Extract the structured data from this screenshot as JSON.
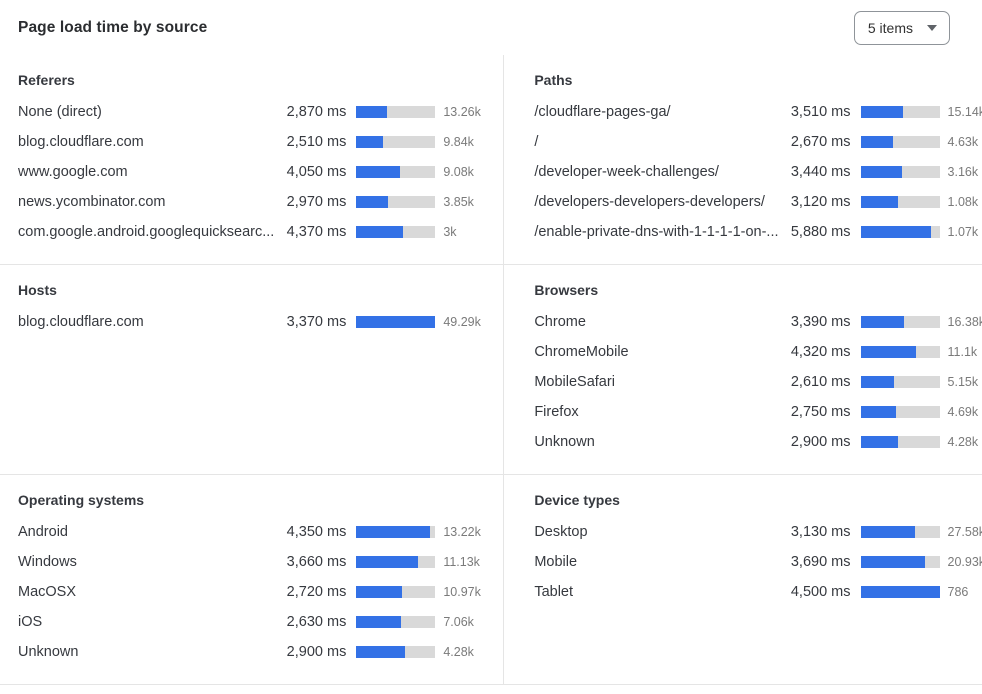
{
  "header": {
    "title": "Page load time by source",
    "items_select": {
      "value": "5 items"
    }
  },
  "colors": {
    "bar_fill": "#3371E6",
    "bar_track": "#D9D9D9",
    "divider": "#E5E5E5",
    "label_text": "#36393F",
    "count_text": "#7A7A7A"
  },
  "chart_data": [
    {
      "type": "bar",
      "title": "Referers",
      "unit": "ms",
      "bar_max_ms": 7400,
      "rows": [
        {
          "label": "None (direct)",
          "ms": 2870,
          "ms_label": "2,870 ms",
          "count_label": "13.26k"
        },
        {
          "label": "blog.cloudflare.com",
          "ms": 2510,
          "ms_label": "2,510 ms",
          "count_label": "9.84k"
        },
        {
          "label": "www.google.com",
          "ms": 4050,
          "ms_label": "4,050 ms",
          "count_label": "9.08k"
        },
        {
          "label": "news.ycombinator.com",
          "ms": 2970,
          "ms_label": "2,970 ms",
          "count_label": "3.85k"
        },
        {
          "label": "com.google.android.googlequicksearc...",
          "ms": 4370,
          "ms_label": "4,370 ms",
          "count_label": "3k"
        }
      ]
    },
    {
      "type": "bar",
      "title": "Paths",
      "unit": "ms",
      "bar_max_ms": 6600,
      "rows": [
        {
          "label": "/cloudflare-pages-ga/",
          "ms": 3510,
          "ms_label": "3,510 ms",
          "count_label": "15.14k"
        },
        {
          "label": "/",
          "ms": 2670,
          "ms_label": "2,670 ms",
          "count_label": "4.63k"
        },
        {
          "label": "/developer-week-challenges/",
          "ms": 3440,
          "ms_label": "3,440 ms",
          "count_label": "3.16k"
        },
        {
          "label": "/developers-developers-developers/",
          "ms": 3120,
          "ms_label": "3,120 ms",
          "count_label": "1.08k"
        },
        {
          "label": "/enable-private-dns-with-1-1-1-1-on-...",
          "ms": 5880,
          "ms_label": "5,880 ms",
          "count_label": "1.07k"
        }
      ]
    },
    {
      "type": "bar",
      "title": "Hosts",
      "unit": "ms",
      "bar_max_ms": 3370,
      "rows": [
        {
          "label": "blog.cloudflare.com",
          "ms": 3370,
          "ms_label": "3,370 ms",
          "count_label": "49.29k"
        }
      ]
    },
    {
      "type": "bar",
      "title": "Browsers",
      "unit": "ms",
      "bar_max_ms": 6150,
      "rows": [
        {
          "label": "Chrome",
          "ms": 3390,
          "ms_label": "3,390 ms",
          "count_label": "16.38k"
        },
        {
          "label": "ChromeMobile",
          "ms": 4320,
          "ms_label": "4,320 ms",
          "count_label": "11.1k"
        },
        {
          "label": "MobileSafari",
          "ms": 2610,
          "ms_label": "2,610 ms",
          "count_label": "5.15k"
        },
        {
          "label": "Firefox",
          "ms": 2750,
          "ms_label": "2,750 ms",
          "count_label": "4.69k"
        },
        {
          "label": "Unknown",
          "ms": 2900,
          "ms_label": "2,900 ms",
          "count_label": "4.28k"
        }
      ]
    },
    {
      "type": "bar",
      "title": "Operating systems",
      "unit": "ms",
      "bar_max_ms": 4670,
      "rows": [
        {
          "label": "Android",
          "ms": 4350,
          "ms_label": "4,350 ms",
          "count_label": "13.22k"
        },
        {
          "label": "Windows",
          "ms": 3660,
          "ms_label": "3,660 ms",
          "count_label": "11.13k"
        },
        {
          "label": "MacOSX",
          "ms": 2720,
          "ms_label": "2,720 ms",
          "count_label": "10.97k"
        },
        {
          "label": "iOS",
          "ms": 2630,
          "ms_label": "2,630 ms",
          "count_label": "7.06k"
        },
        {
          "label": "Unknown",
          "ms": 2900,
          "ms_label": "2,900 ms",
          "count_label": "4.28k"
        }
      ]
    },
    {
      "type": "bar",
      "title": "Device types",
      "unit": "ms",
      "bar_max_ms": 4500,
      "rows": [
        {
          "label": "Desktop",
          "ms": 3130,
          "ms_label": "3,130 ms",
          "count_label": "27.58k"
        },
        {
          "label": "Mobile",
          "ms": 3690,
          "ms_label": "3,690 ms",
          "count_label": "20.93k"
        },
        {
          "label": "Tablet",
          "ms": 4500,
          "ms_label": "4,500 ms",
          "count_label": "786"
        }
      ]
    }
  ]
}
